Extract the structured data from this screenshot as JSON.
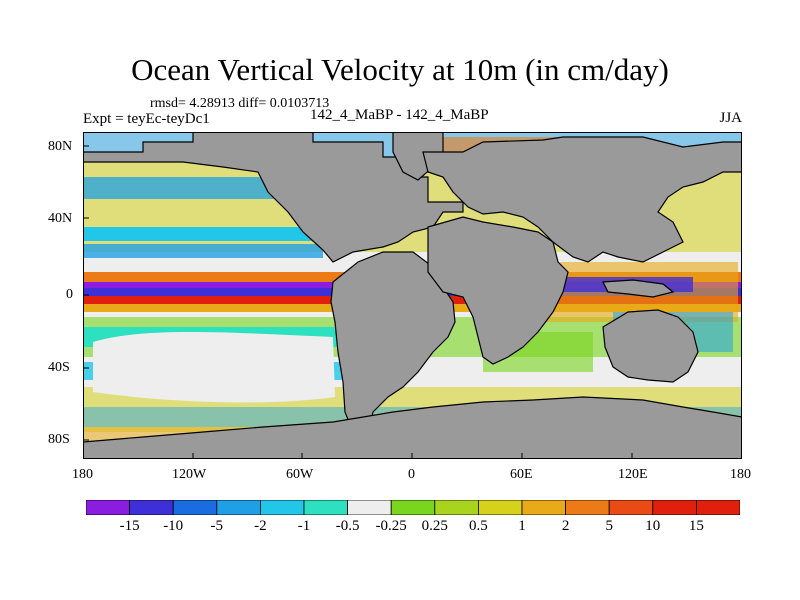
{
  "figure": {
    "title": "Ocean Vertical Velocity at 10m (in cm/day)",
    "stats_line": "rmsd= 4.28913  diff= 0.0103713",
    "expt_label": "Expt = teyEc-teyDc1",
    "cases_label": "142_4_MaBP - 142_4_MaBP",
    "season_label": "JJA"
  },
  "axes": {
    "lat_ticks": [
      "80N",
      "40N",
      "0",
      "40S",
      "80S"
    ],
    "lon_ticks": [
      "180",
      "120W",
      "60W",
      "0",
      "60E",
      "120E",
      "180"
    ]
  },
  "colorbar": {
    "labels": [
      "-15",
      "-10",
      "-5",
      "-2",
      "-1",
      "-0.5",
      "-0.25",
      "0.25",
      "0.5",
      "1",
      "2",
      "5",
      "10",
      "15"
    ],
    "colors": [
      "#8a1de0",
      "#3f2fd8",
      "#1a6de0",
      "#1fa0e6",
      "#22c6e8",
      "#2ce0c0",
      "#eeeeee",
      "#7ad51e",
      "#a8d41e",
      "#d6d21c",
      "#e8aa18",
      "#ec7a16",
      "#ea4a14",
      "#e0200c"
    ]
  },
  "map_colors": {
    "land": "#9a9a9a",
    "neutral": "#eeeeee",
    "up_weak": "#7ad51e",
    "up_mid": "#d6d21c",
    "up_strong": "#ec7a16",
    "up_max": "#e0200c",
    "down_weak": "#2ce0c0",
    "down_mid": "#1fa0e6",
    "down_strong": "#3f2fd8",
    "down_max": "#8a1de0"
  }
}
